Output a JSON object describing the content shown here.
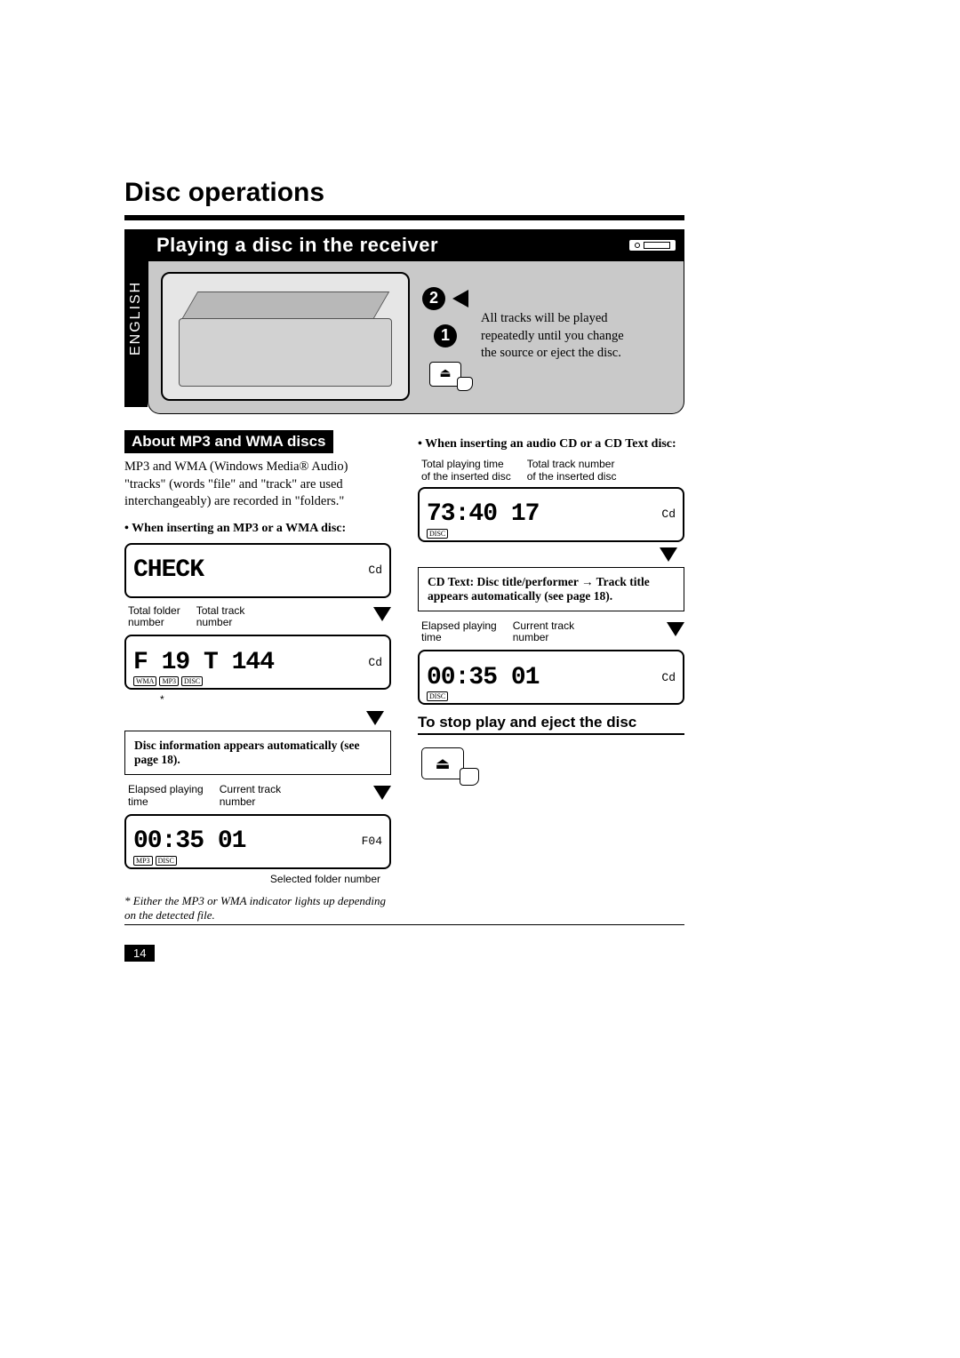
{
  "page_title": "Disc operations",
  "language_tab": "ENGLISH",
  "banner": {
    "title": "Playing a disc in the receiver"
  },
  "hero_text": "All tracks will be played repeatedly until you change the source or eject the disc.",
  "steps": {
    "one": "1",
    "two": "2"
  },
  "left": {
    "section": "About MP3 and WMA discs",
    "para": "MP3 and WMA (Windows Media® Audio) \"tracks\" (words \"file\" and \"track\" are used interchangeably) are recorded in \"folders.\"",
    "bullet1": "When inserting an MP3 or a WMA disc:",
    "lcd1_main": "CHECK",
    "lcd1_side": "Cd",
    "labels1a": "Total folder\nnumber",
    "labels1b": "Total track\nnumber",
    "lcd2_main": "F 19  T 144",
    "lcd2_side": "Cd",
    "asterisk": "*",
    "info_box": "Disc information appears automatically (see page 18).",
    "labels2a": "Elapsed playing\ntime",
    "labels2b": "Current track\nnumber",
    "lcd3_main": "00:35  01",
    "lcd3_side": "F04",
    "caption_below": "Selected folder number",
    "footnote": "* Either the MP3 or WMA indicator lights up depending on the detected file."
  },
  "right": {
    "bullet1": "When inserting an audio CD or a CD Text disc:",
    "labels1a": "Total playing time\nof the inserted disc",
    "labels1b": "Total track number\nof the inserted disc",
    "lcd1_main": "73:40   17",
    "lcd1_side": "Cd",
    "info_box": "CD Text: Disc title/performer → Track title appears automatically (see page 18).",
    "labels2a": "Elapsed playing\ntime",
    "labels2b": "Current track\nnumber",
    "lcd2_main": "00:35  01",
    "lcd2_side": "Cd",
    "stop_section": "To stop play and eject the disc"
  },
  "page_number": "14",
  "lcd_badges": {
    "wma": "WMA",
    "mp3": "MP3",
    "disc": "DISC"
  },
  "colors": {
    "black": "#000000",
    "white": "#ffffff",
    "hero_bg": "#c9c9c9"
  }
}
